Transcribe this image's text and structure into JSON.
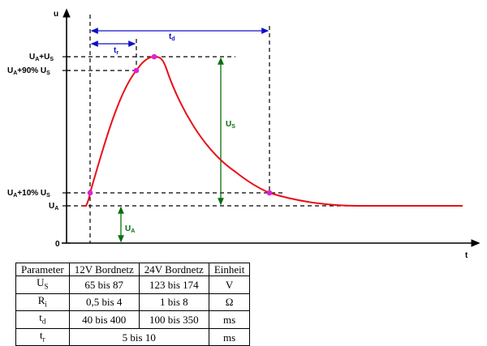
{
  "axes": {
    "y_label": "u",
    "x_label": "t",
    "y_ticks": [
      "Uₐ+Uₛ",
      "Uₐ+90% Uₛ",
      "Uₐ+10% Uₛ",
      "Uₐ",
      "0"
    ]
  },
  "annotations": {
    "t_d": "t",
    "t_d_sub": "d",
    "t_r": "t",
    "t_r_sub": "r",
    "u_s": "U",
    "u_s_sub": "S",
    "u_a": "U",
    "u_a_sub": "A"
  },
  "y_tick_labels": {
    "peak": "UA+US",
    "ninety": "UA+90% US",
    "ten": "UA+10% US",
    "base": "UA",
    "zero": "0"
  },
  "colors": {
    "curve": "#e8101a",
    "markers": "#e020d8",
    "timing": "#1010c8",
    "amplitude": "#0a6e0a"
  },
  "table": {
    "headers": [
      "Parameter",
      "12V Bordnetz",
      "24V Bordnetz",
      "Einheit"
    ],
    "rows": [
      {
        "param": "Us",
        "v12": "65 bis 87",
        "v24": "123 bis 174",
        "unit": "V"
      },
      {
        "param": "Ri",
        "v12": "0,5 bis 4",
        "v24": "1 bis 8",
        "unit": "Ω"
      },
      {
        "param": "td",
        "v12": "40 bis 400",
        "v24": "100 bis 350",
        "unit": "ms"
      },
      {
        "param": "tr",
        "merged": "5 bis 10",
        "unit": "ms"
      }
    ]
  }
}
